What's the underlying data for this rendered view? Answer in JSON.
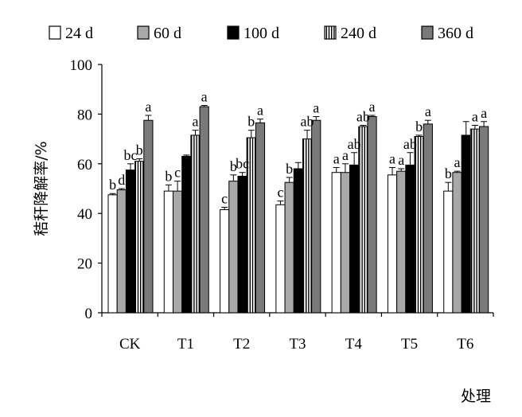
{
  "chart_data": {
    "type": "bar",
    "ylabel": "秸秆降解率/%",
    "xlabel": "处理",
    "categories": [
      "CK",
      "T1",
      "T2",
      "T3",
      "T4",
      "T5",
      "T6"
    ],
    "ylim": [
      0,
      100
    ],
    "yticks": [
      0,
      20,
      40,
      60,
      80,
      100
    ],
    "grid": false,
    "legend_position": "top",
    "series": [
      {
        "name": "24 d",
        "pattern": "white",
        "values": [
          47.5,
          49,
          41.5,
          43.5,
          56.5,
          55.5,
          49
        ],
        "errors": [
          0.5,
          2.5,
          1,
          1.5,
          2,
          3,
          3.5
        ],
        "labels": [
          "b",
          "b",
          "c",
          "c",
          "a",
          "a",
          "b"
        ]
      },
      {
        "name": "60 d",
        "pattern": "light-gray",
        "values": [
          49.5,
          49,
          53,
          52.5,
          56.5,
          57,
          56.5
        ],
        "errors": [
          0.5,
          4,
          2.5,
          2,
          3.5,
          1,
          0.5
        ],
        "labels": [
          "d",
          "c",
          "b",
          "b",
          "a",
          "a",
          "a"
        ]
      },
      {
        "name": "100 d",
        "pattern": "black",
        "values": [
          57.5,
          63,
          55,
          58,
          59.5,
          59.5,
          71.5
        ],
        "errors": [
          2.5,
          0.5,
          1.5,
          2.5,
          5,
          5,
          5.5
        ],
        "labels": [
          "bc",
          "",
          "bc",
          "",
          "ab",
          "ab",
          ""
        ]
      },
      {
        "name": "240 d",
        "pattern": "vertical-stripes",
        "values": [
          61,
          71.5,
          70.5,
          70,
          75,
          71,
          74
        ],
        "errors": [
          1,
          2,
          3,
          3.5,
          0.5,
          0.5,
          1.5
        ],
        "labels": [
          "b",
          "a",
          "b",
          "ab",
          "ab",
          "b",
          "a"
        ]
      },
      {
        "name": "360 d",
        "pattern": "dark-gray",
        "values": [
          77.5,
          83,
          76.5,
          77.5,
          79,
          76,
          75
        ],
        "errors": [
          2,
          0.5,
          1.5,
          1.5,
          0.5,
          1.5,
          2
        ],
        "labels": [
          "a",
          "a",
          "a",
          "a",
          "a",
          "a",
          "a"
        ]
      }
    ]
  },
  "colors": {
    "white": "#ffffff",
    "light-gray": "#a8a8a8",
    "black": "#000000",
    "dark-gray": "#7a7a7a",
    "stroke": "#000000"
  }
}
